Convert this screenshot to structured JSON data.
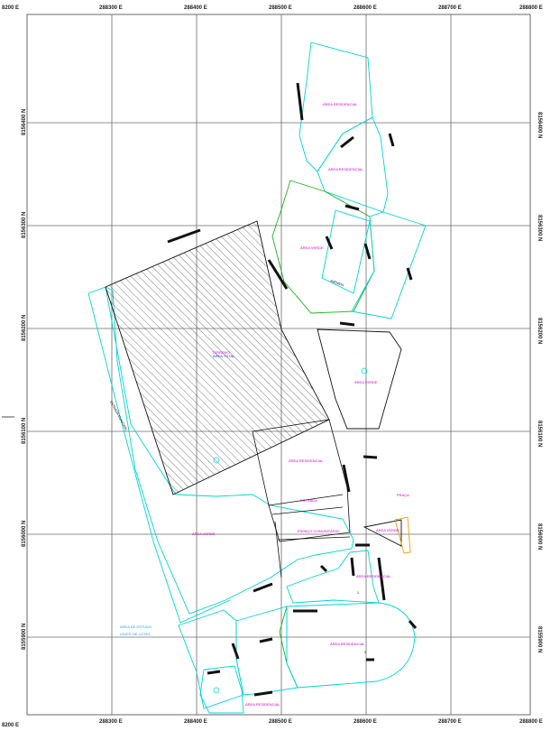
{
  "colors": {
    "grid": "#6b6b6b",
    "parcel_cyan": "#00d5d5",
    "parcel_green": "#1fb31f",
    "parcel_black": "#111111",
    "parcel_orange": "#f0a000",
    "label_magenta": "#d400c8",
    "label_blue": "#1a1aff"
  },
  "grid": {
    "easting_labels": [
      "288200 E",
      "288300 E",
      "288400 E",
      "288500 E",
      "288600 E",
      "288700 E",
      "288800 E"
    ],
    "northing_left": [
      "8156400 N",
      "8156300 N",
      "8156200 N",
      "8156100 N",
      "8156000 N",
      "8155900 N"
    ],
    "northing_right": [
      "8156400 N",
      "8156300 N",
      "8156200 N",
      "8156100 N",
      "8156000 N",
      "8155900 N"
    ],
    "corner_top_left": "8200 E",
    "corner_bottom_left": "8200 E"
  },
  "labels": {
    "area_1": "ÁREA RESIDENCIAL",
    "area_2": "ÁREA RESIDENCIAL",
    "area_3": "ÁREA VERDE",
    "area_4": "ÁREA VERDE",
    "hatched_title": "TERRENO",
    "hatched_sub": "ÁREA TOTAL",
    "area_5": "ÁREA RESIDENCIAL",
    "area_6": "ÁREA VERDE",
    "area_7": "ESTRADA",
    "area_8": "ÁREA RESIDENCIAL",
    "area_9": "ESPAÇO COMUNITÁRIO",
    "area_10": "ÁREA VERDE",
    "area_11": "PRAÇA",
    "area_12": "ÁREA RESIDENCIAL",
    "area_13": "ÁREA RESIDENCIAL",
    "area_14": "ÁREA RESIDENCIAL",
    "road_1": "ESTRADA MUNICIPAL",
    "road_2": "AVENIDA",
    "small_1": "1",
    "small_2": "2"
  },
  "legend": {
    "item1": "ÁREA DE ESTUDO",
    "item2": "LIMITE DE LOTES"
  }
}
